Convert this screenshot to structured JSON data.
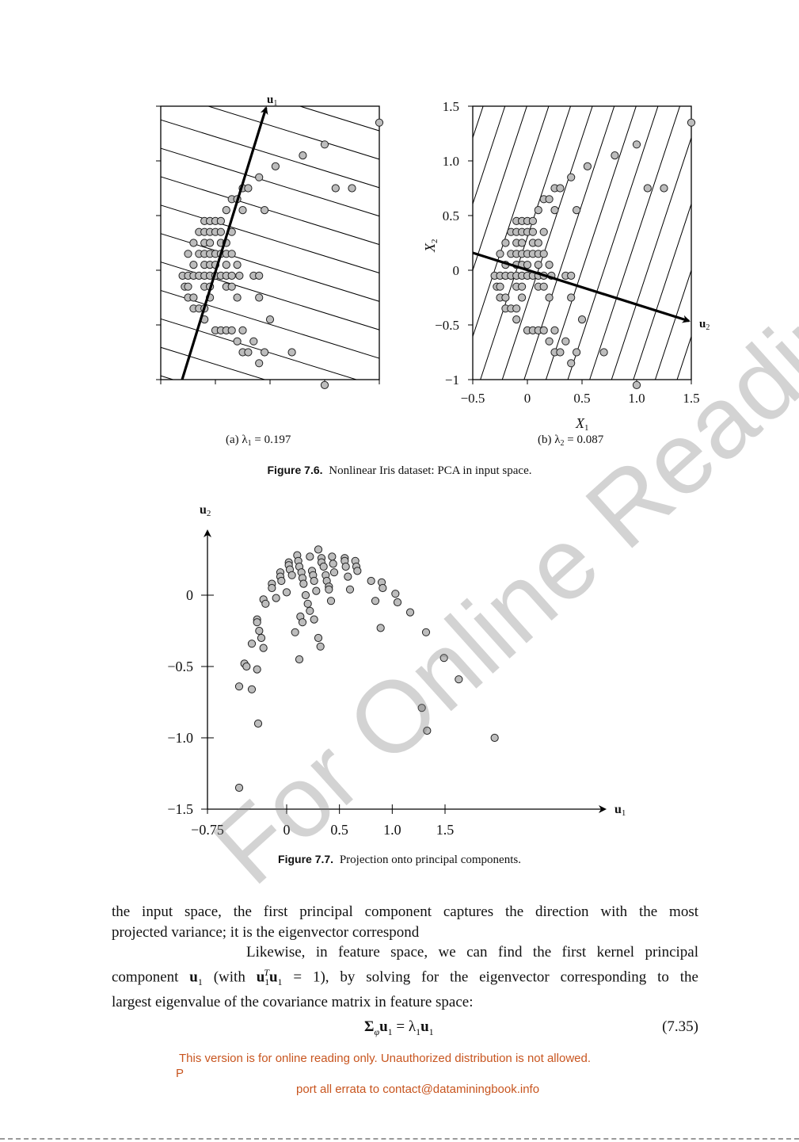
{
  "figure_7_6": {
    "panel_a": {
      "sublabel": "(a) λ",
      "sub_index": "1",
      "sub_value": " = 0.197",
      "vector_label": "u",
      "vector_index": "1"
    },
    "panel_b": {
      "sublabel": "(b) λ",
      "sub_index": "2",
      "sub_value": " = 0.087",
      "vector_label": "u",
      "vector_index": "2",
      "xlabel": "X",
      "xlabel_index": "1",
      "ylabel": "X",
      "ylabel_index": "2",
      "xticks": [
        "−0.5",
        "0",
        "0.5",
        "1.0",
        "1.5"
      ],
      "yticks": [
        "1.5",
        "1.0",
        "0.5",
        "0",
        "−0.5",
        "−1"
      ]
    },
    "caption_label": "Figure 7.6.",
    "caption_text": "Nonlinear Iris dataset: PCA in input space."
  },
  "figure_7_7": {
    "xaxis_label": "u",
    "xaxis_index": "1",
    "yaxis_label": "u",
    "yaxis_index": "2",
    "xticks": [
      "−0.75",
      "0",
      "0.5",
      "1.0",
      "1.5"
    ],
    "yticks": [
      "0",
      "−0.5",
      "−1.0",
      "−1.5"
    ],
    "caption_label": "Figure 7.7.",
    "caption_text": "Projection onto principal components."
  },
  "chart_data": [
    {
      "type": "scatter",
      "title": "(a) λ1 = 0.197",
      "xlim": [
        -0.5,
        1.5
      ],
      "ylim": [
        -1,
        1.5
      ],
      "grid": false,
      "points": [
        [
          1.5,
          1.35
        ],
        [
          1.0,
          1.15
        ],
        [
          0.8,
          1.05
        ],
        [
          0.55,
          0.95
        ],
        [
          0.4,
          0.85
        ],
        [
          0.25,
          0.75
        ],
        [
          0.3,
          0.75
        ],
        [
          0.15,
          0.65
        ],
        [
          0.2,
          0.65
        ],
        [
          0.1,
          0.55
        ],
        [
          0.25,
          0.55
        ],
        [
          0.45,
          0.55
        ],
        [
          1.1,
          0.75
        ],
        [
          1.25,
          0.75
        ],
        [
          -0.1,
          0.45
        ],
        [
          -0.05,
          0.45
        ],
        [
          0.0,
          0.45
        ],
        [
          0.05,
          0.45
        ],
        [
          -0.15,
          0.35
        ],
        [
          -0.1,
          0.35
        ],
        [
          -0.05,
          0.35
        ],
        [
          0.0,
          0.35
        ],
        [
          0.05,
          0.35
        ],
        [
          0.15,
          0.35
        ],
        [
          -0.2,
          0.25
        ],
        [
          -0.1,
          0.25
        ],
        [
          -0.05,
          0.25
        ],
        [
          0.05,
          0.25
        ],
        [
          0.1,
          0.25
        ],
        [
          -0.25,
          0.15
        ],
        [
          -0.15,
          0.15
        ],
        [
          -0.1,
          0.15
        ],
        [
          -0.05,
          0.15
        ],
        [
          0.0,
          0.15
        ],
        [
          0.05,
          0.15
        ],
        [
          0.1,
          0.15
        ],
        [
          0.15,
          0.15
        ],
        [
          -0.2,
          0.05
        ],
        [
          -0.1,
          0.05
        ],
        [
          -0.05,
          0.05
        ],
        [
          0.0,
          0.05
        ],
        [
          0.1,
          0.05
        ],
        [
          0.2,
          0.05
        ],
        [
          -0.3,
          -0.05
        ],
        [
          -0.25,
          -0.05
        ],
        [
          -0.2,
          -0.05
        ],
        [
          -0.15,
          -0.05
        ],
        [
          -0.1,
          -0.05
        ],
        [
          -0.05,
          -0.05
        ],
        [
          0.0,
          -0.05
        ],
        [
          0.05,
          -0.05
        ],
        [
          0.1,
          -0.05
        ],
        [
          0.15,
          -0.05
        ],
        [
          0.22,
          -0.05
        ],
        [
          0.35,
          -0.05
        ],
        [
          0.4,
          -0.05
        ],
        [
          -0.28,
          -0.15
        ],
        [
          -0.25,
          -0.15
        ],
        [
          -0.1,
          -0.15
        ],
        [
          -0.05,
          -0.15
        ],
        [
          0.1,
          -0.15
        ],
        [
          0.15,
          -0.15
        ],
        [
          -0.25,
          -0.25
        ],
        [
          -0.2,
          -0.25
        ],
        [
          -0.05,
          -0.25
        ],
        [
          0.2,
          -0.25
        ],
        [
          0.4,
          -0.25
        ],
        [
          -0.2,
          -0.35
        ],
        [
          -0.15,
          -0.35
        ],
        [
          -0.1,
          -0.35
        ],
        [
          -0.1,
          -0.45
        ],
        [
          0.5,
          -0.45
        ],
        [
          0.0,
          -0.55
        ],
        [
          0.05,
          -0.55
        ],
        [
          0.1,
          -0.55
        ],
        [
          0.15,
          -0.55
        ],
        [
          0.25,
          -0.55
        ],
        [
          0.2,
          -0.65
        ],
        [
          0.35,
          -0.65
        ],
        [
          0.25,
          -0.75
        ],
        [
          0.3,
          -0.75
        ],
        [
          0.45,
          -0.75
        ],
        [
          0.7,
          -0.75
        ],
        [
          0.4,
          -0.85
        ],
        [
          1.0,
          -1.05
        ]
      ]
    },
    {
      "type": "scatter",
      "title": "(b) λ2 = 0.087",
      "xlabel": "X1",
      "ylabel": "X2",
      "xlim": [
        -0.5,
        1.5
      ],
      "ylim": [
        -1,
        1.5
      ],
      "grid": false,
      "points": "same as panel (a)"
    },
    {
      "type": "scatter",
      "title": "",
      "xlabel": "u1",
      "ylabel": "u2",
      "xlim": [
        -0.75,
        2.0
      ],
      "ylim": [
        -1.5,
        0.4
      ],
      "grid": false,
      "points": [
        [
          -0.45,
          -1.35
        ],
        [
          -0.45,
          -0.64
        ],
        [
          -0.4,
          -0.48
        ],
        [
          -0.38,
          -0.5
        ],
        [
          -0.33,
          -0.66
        ],
        [
          -0.33,
          -0.34
        ],
        [
          -0.28,
          -0.52
        ],
        [
          -0.27,
          -0.9
        ],
        [
          -0.28,
          -0.17
        ],
        [
          -0.28,
          -0.19
        ],
        [
          -0.26,
          -0.25
        ],
        [
          -0.24,
          -0.3
        ],
        [
          -0.22,
          -0.37
        ],
        [
          -0.22,
          -0.03
        ],
        [
          -0.2,
          -0.06
        ],
        [
          -0.14,
          0.08
        ],
        [
          -0.14,
          0.05
        ],
        [
          -0.1,
          -0.02
        ],
        [
          -0.06,
          0.16
        ],
        [
          -0.06,
          0.13
        ],
        [
          -0.05,
          0.1
        ],
        [
          0.0,
          0.02
        ],
        [
          0.02,
          0.23
        ],
        [
          0.02,
          0.21
        ],
        [
          0.03,
          0.18
        ],
        [
          0.05,
          0.14
        ],
        [
          0.08,
          -0.26
        ],
        [
          0.1,
          0.28
        ],
        [
          0.11,
          0.24
        ],
        [
          0.12,
          0.2
        ],
        [
          0.12,
          -0.45
        ],
        [
          0.13,
          -0.15
        ],
        [
          0.14,
          0.16
        ],
        [
          0.15,
          0.12
        ],
        [
          0.15,
          -0.19
        ],
        [
          0.16,
          0.08
        ],
        [
          0.18,
          0.0
        ],
        [
          0.2,
          -0.06
        ],
        [
          0.22,
          0.27
        ],
        [
          0.22,
          -0.11
        ],
        [
          0.24,
          0.17
        ],
        [
          0.25,
          0.14
        ],
        [
          0.26,
          0.1
        ],
        [
          0.26,
          -0.17
        ],
        [
          0.28,
          0.03
        ],
        [
          0.3,
          -0.3
        ],
        [
          0.3,
          0.32
        ],
        [
          0.32,
          -0.36
        ],
        [
          0.33,
          0.26
        ],
        [
          0.33,
          0.23
        ],
        [
          0.35,
          0.2
        ],
        [
          0.37,
          0.14
        ],
        [
          0.38,
          0.1
        ],
        [
          0.4,
          0.06
        ],
        [
          0.4,
          0.04
        ],
        [
          0.42,
          -0.04
        ],
        [
          0.43,
          0.27
        ],
        [
          0.44,
          0.22
        ],
        [
          0.45,
          0.16
        ],
        [
          0.55,
          0.26
        ],
        [
          0.55,
          0.24
        ],
        [
          0.56,
          0.2
        ],
        [
          0.58,
          0.13
        ],
        [
          0.6,
          0.04
        ],
        [
          0.65,
          0.24
        ],
        [
          0.66,
          0.2
        ],
        [
          0.67,
          0.17
        ],
        [
          0.8,
          0.1
        ],
        [
          0.84,
          -0.04
        ],
        [
          0.89,
          -0.23
        ],
        [
          0.9,
          0.09
        ],
        [
          0.91,
          0.05
        ],
        [
          1.03,
          0.01
        ],
        [
          1.05,
          -0.05
        ],
        [
          1.17,
          -0.12
        ],
        [
          1.28,
          -0.79
        ],
        [
          1.32,
          -0.26
        ],
        [
          1.33,
          -0.95
        ],
        [
          1.49,
          -0.44
        ],
        [
          1.63,
          -0.59
        ],
        [
          1.97,
          -1.0
        ]
      ]
    }
  ],
  "text": {
    "line1": "the input space, the first principal component captures the direction with the most",
    "line2": "projected variance; it is the eigenvector correspond",
    "line3": "Likewise, in feature space, we can find the first kernel principal",
    "line4_a": "component ",
    "line4_b": "u",
    "line4_c": "1",
    "line4_d": " (with ",
    "line4_e": "u",
    "line4_f": "1",
    "line4_g": "T",
    "line4_h": "u",
    "line4_i": "1",
    "line4_j": " = 1), by solving for the eigenvector corresponding to the",
    "line5": "largest eigenvalue of the covariance matrix in feature space:"
  },
  "equation": {
    "sigma": "Σ",
    "phi": "φ",
    "u": "u",
    "sub1": "1",
    "eq": " = λ",
    "lambda_sub": "1",
    "u2": "u",
    "sub2": "1",
    "number": "(7.35)"
  },
  "footer": {
    "line1": "This version is for online reading only. Unauthorized distribution is not allowed.",
    "line2": "P",
    "line3": "port all errata to contact@dataminingbook.info"
  },
  "watermark": "For Online Reading Only",
  "colors": {
    "point_fill": "#bdbdbd",
    "footer_text": "#c8551f",
    "watermark": "#787878"
  }
}
